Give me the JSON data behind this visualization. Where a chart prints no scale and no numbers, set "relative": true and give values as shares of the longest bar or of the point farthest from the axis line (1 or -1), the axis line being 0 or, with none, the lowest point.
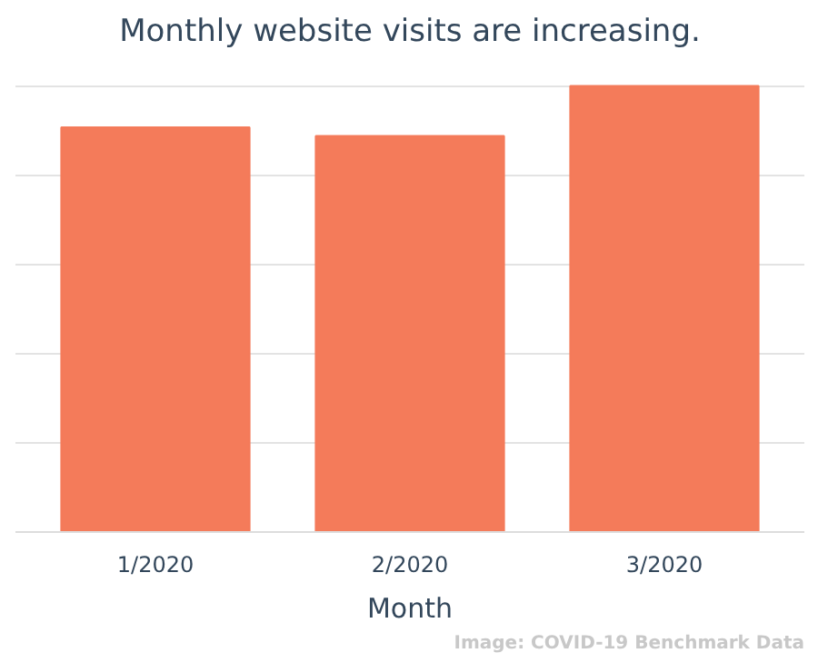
{
  "chart_data": {
    "type": "bar",
    "title": "Monthly website visits are increasing.",
    "xlabel": "Month",
    "categories": [
      "1/2020",
      "2/2020",
      "3/2020"
    ],
    "values": [
      0.907,
      0.888,
      1
    ],
    "color": "#f47b5a",
    "relative": true,
    "grid": "y",
    "annotations": [
      "Image: COVID-19 Benchmark Data"
    ]
  }
}
